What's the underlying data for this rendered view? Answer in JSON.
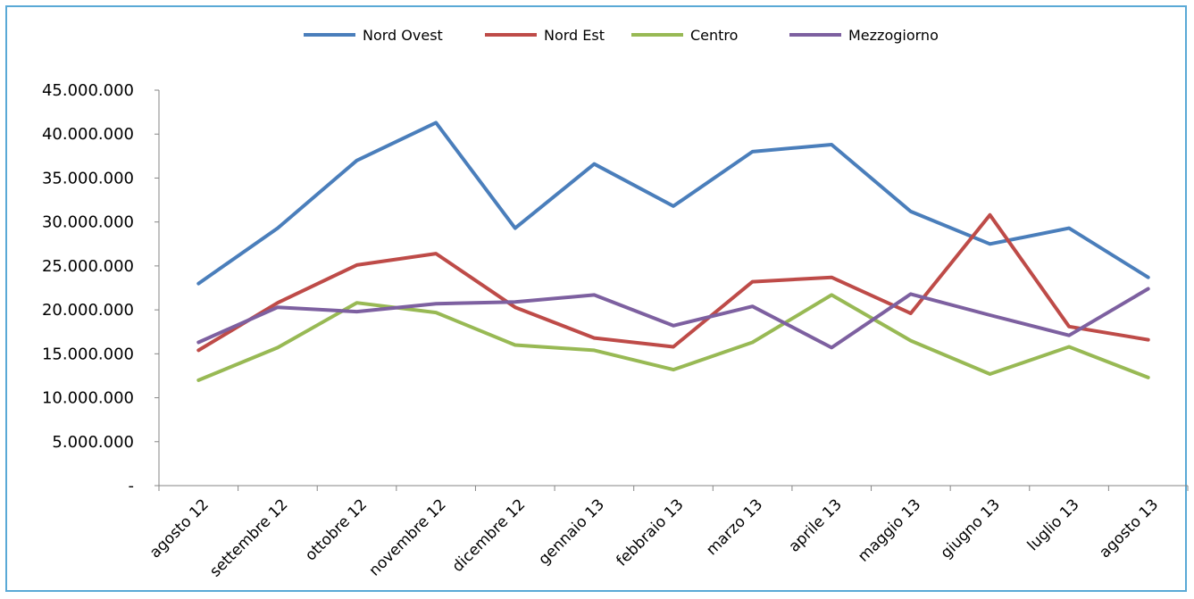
{
  "chart_data": {
    "type": "line",
    "title": "",
    "xlabel": "",
    "ylabel": "",
    "categories": [
      "agosto 12",
      "settembre 12",
      "ottobre 12",
      "novembre 12",
      "dicembre 12",
      "gennaio 13",
      "febbraio 13",
      "marzo 13",
      "aprile 13",
      "maggio 13",
      "giugno 13",
      "luglio 13",
      "agosto 13"
    ],
    "ylim": [
      0,
      45000000
    ],
    "yticks": [
      "-",
      "5.000.000",
      "10.000.000",
      "15.000.000",
      "20.000.000",
      "25.000.000",
      "30.000.000",
      "35.000.000",
      "40.000.000",
      "45.000.000"
    ],
    "legend_position": "top",
    "grid": false,
    "series": [
      {
        "name": "Nord Ovest",
        "color": "#4a7ebb",
        "values": [
          23000000,
          29300000,
          37000000,
          41300000,
          29300000,
          36600000,
          31800000,
          38000000,
          38800000,
          31200000,
          27500000,
          29300000,
          23700000
        ]
      },
      {
        "name": "Nord Est",
        "color": "#be4b48",
        "values": [
          15400000,
          20800000,
          25100000,
          26400000,
          20300000,
          16800000,
          15800000,
          23200000,
          23700000,
          19600000,
          30800000,
          18100000,
          16600000
        ]
      },
      {
        "name": "Centro",
        "color": "#98b954",
        "values": [
          12000000,
          15700000,
          20800000,
          19700000,
          16000000,
          15400000,
          13200000,
          16300000,
          21700000,
          16500000,
          12700000,
          15800000,
          12300000
        ]
      },
      {
        "name": "Mezzogiorno",
        "color": "#7d60a0",
        "values": [
          16300000,
          20300000,
          19800000,
          20700000,
          20900000,
          21700000,
          18200000,
          20400000,
          15700000,
          21800000,
          19400000,
          17100000,
          22400000
        ]
      }
    ]
  }
}
